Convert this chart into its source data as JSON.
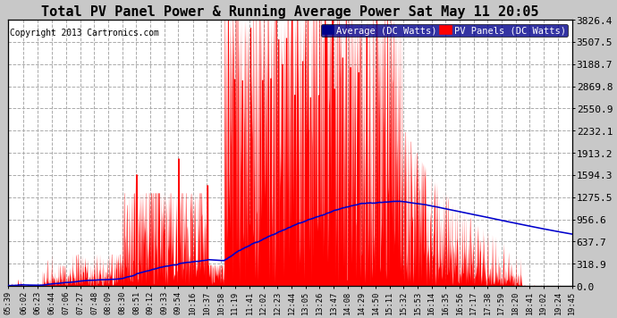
{
  "title": "Total PV Panel Power & Running Average Power Sat May 11 20:05",
  "copyright": "Copyright 2013 Cartronics.com",
  "ylabel_right_ticks": [
    0.0,
    318.9,
    637.7,
    956.6,
    1275.5,
    1594.3,
    1913.2,
    2232.1,
    2550.9,
    2869.8,
    3188.7,
    3507.5,
    3826.4
  ],
  "ymax": 3826.4,
  "ymin": 0.0,
  "background_color": "#c8c8c8",
  "plot_bg_color": "#ffffff",
  "bar_color": "#ff0000",
  "line_color": "#0000cc",
  "grid_color": "#cccccc",
  "title_fontsize": 11,
  "legend_avg_color": "#00008b",
  "legend_pv_color": "#ff0000",
  "legend_avg_text": "Average (DC Watts)",
  "legend_pv_text": "PV Panels (DC Watts)",
  "x_tick_labels": [
    "05:39",
    "06:02",
    "06:23",
    "06:44",
    "07:06",
    "07:27",
    "07:48",
    "08:09",
    "08:30",
    "08:51",
    "09:12",
    "09:33",
    "09:54",
    "10:16",
    "10:37",
    "10:58",
    "11:19",
    "11:41",
    "12:02",
    "12:23",
    "12:44",
    "13:05",
    "13:26",
    "13:47",
    "14:08",
    "14:29",
    "14:50",
    "15:11",
    "15:32",
    "15:53",
    "16:14",
    "16:35",
    "16:56",
    "17:17",
    "17:38",
    "17:59",
    "18:20",
    "18:41",
    "19:02",
    "19:24",
    "19:45"
  ]
}
